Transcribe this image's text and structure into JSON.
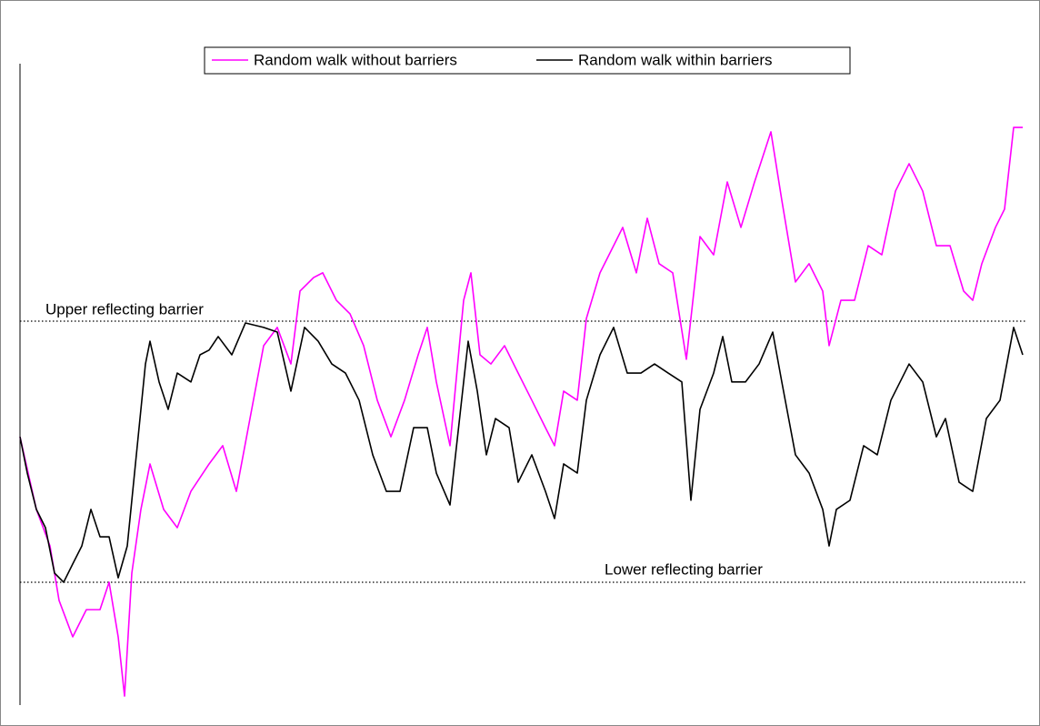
{
  "chart_data": {
    "type": "line",
    "xlim": [
      0,
      1108
    ],
    "ylim": [
      -4.53,
      19.86
    ],
    "barriers": [
      {
        "label": "Upper reflecting barrier",
        "value": 10
      },
      {
        "label": "Lower reflecting barrier",
        "value": 0
      }
    ],
    "series": [
      {
        "name": "Random walk without barriers",
        "color": "#ff00ff",
        "x": [
          0,
          18,
          33,
          43,
          58,
          73,
          88,
          98,
          108,
          115,
          123,
          133,
          143,
          158,
          173,
          188,
          208,
          223,
          238,
          253,
          268,
          283,
          298,
          308,
          323,
          333,
          348,
          363,
          378,
          393,
          408,
          423,
          438,
          448,
          458,
          473,
          488,
          496,
          506,
          518,
          533,
          548,
          563,
          578,
          588,
          598,
          613,
          623,
          638,
          653,
          663,
          678,
          690,
          703,
          718,
          733,
          748,
          763,
          778,
          793,
          808,
          826,
          838,
          853,
          868,
          883,
          890,
          903,
          918,
          933,
          948,
          963,
          978,
          993,
          1008,
          1023,
          1038,
          1048,
          1058,
          1073,
          1083,
          1093,
          1103
        ],
        "values": [
          5.57,
          2.79,
          1.39,
          -0.7,
          -2.09,
          -1.05,
          -1.05,
          0,
          -2.09,
          -4.36,
          0.35,
          2.79,
          4.53,
          2.79,
          2.09,
          3.48,
          4.53,
          5.23,
          3.48,
          6.27,
          9.06,
          9.76,
          8.36,
          11.15,
          11.67,
          11.85,
          10.8,
          10.28,
          9.06,
          6.97,
          5.57,
          6.97,
          8.71,
          9.76,
          7.67,
          5.23,
          10.8,
          11.85,
          8.71,
          8.36,
          9.06,
          8.01,
          6.97,
          5.92,
          5.23,
          7.32,
          6.97,
          10.1,
          11.85,
          12.89,
          13.59,
          11.85,
          13.94,
          12.2,
          11.85,
          8.54,
          13.24,
          12.54,
          15.33,
          13.59,
          15.33,
          17.25,
          14.63,
          11.5,
          12.2,
          11.15,
          9.06,
          10.8,
          10.8,
          12.89,
          12.54,
          14.98,
          16.03,
          14.98,
          12.89,
          12.89,
          11.15,
          10.8,
          12.2,
          13.59,
          14.29,
          17.42,
          17.42
        ]
      },
      {
        "name": "Random walk within barriers",
        "color": "#000000",
        "x": [
          0,
          8,
          18,
          28,
          38,
          48,
          58,
          68,
          78,
          88,
          98,
          108,
          118,
          128,
          138,
          143,
          153,
          163,
          173,
          188,
          198,
          208,
          218,
          233,
          248,
          268,
          283,
          298,
          313,
          328,
          343,
          358,
          373,
          388,
          403,
          418,
          433,
          448,
          458,
          473,
          488,
          493,
          503,
          513,
          523,
          538,
          548,
          563,
          578,
          588,
          598,
          613,
          623,
          638,
          653,
          668,
          683,
          698,
          713,
          728,
          738,
          748,
          763,
          773,
          783,
          798,
          813,
          828,
          838,
          853,
          868,
          883,
          890,
          898,
          913,
          928,
          943,
          958,
          978,
          993,
          1008,
          1018,
          1033,
          1048,
          1063,
          1078,
          1093,
          1103
        ],
        "values": [
          5.57,
          4.18,
          2.79,
          2.09,
          0.35,
          0,
          0.7,
          1.39,
          2.79,
          1.74,
          1.74,
          0.17,
          1.39,
          4.88,
          8.36,
          9.23,
          7.67,
          6.62,
          8.01,
          7.67,
          8.71,
          8.89,
          9.41,
          8.71,
          9.93,
          9.76,
          9.58,
          7.32,
          9.76,
          9.23,
          8.36,
          8.01,
          6.97,
          4.88,
          3.48,
          3.48,
          5.92,
          5.92,
          4.18,
          2.96,
          7.67,
          9.23,
          7.32,
          4.88,
          6.27,
          5.92,
          3.83,
          4.88,
          3.48,
          2.44,
          4.53,
          4.18,
          6.97,
          8.71,
          9.76,
          8.01,
          8.01,
          8.36,
          8.01,
          7.67,
          3.14,
          6.62,
          8.01,
          9.41,
          7.67,
          7.67,
          8.36,
          9.58,
          7.67,
          4.88,
          4.18,
          2.79,
          1.39,
          2.79,
          3.14,
          5.23,
          4.88,
          6.97,
          8.36,
          7.67,
          5.57,
          6.27,
          3.83,
          3.48,
          6.27,
          6.97,
          9.76,
          8.71
        ]
      }
    ]
  }
}
